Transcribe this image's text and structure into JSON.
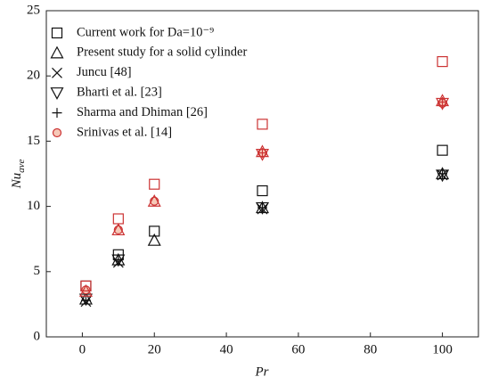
{
  "chart_data": {
    "type": "scatter",
    "xlabel": "Pr",
    "ylabel": {
      "main": "Nu",
      "sub": "ave"
    },
    "xlim": [
      -10,
      110
    ],
    "xticks": [
      0,
      20,
      40,
      60,
      80,
      100
    ],
    "ylim": [
      0,
      25
    ],
    "yticks": [
      0,
      5,
      10,
      15,
      20,
      25
    ],
    "series": [
      {
        "name": "Current work for Da=10⁻⁹",
        "marker": "square",
        "color": "#111111",
        "x": [
          1,
          10,
          20,
          50,
          100
        ],
        "values": [
          3.9,
          6.3,
          8.1,
          11.2,
          14.3
        ]
      },
      {
        "name": "Present study for a solid cylinder",
        "marker": "triangle",
        "color": "#111111",
        "x": [
          1,
          10,
          20,
          50,
          100
        ],
        "values": [
          2.9,
          5.9,
          7.4,
          9.9,
          12.5
        ]
      },
      {
        "name": "Juncu [48]",
        "marker": "cross",
        "color": "#111111",
        "x": [
          1,
          10,
          50,
          100
        ],
        "values": [
          2.7,
          5.7,
          9.8,
          12.4
        ]
      },
      {
        "name": "Bharti et al. [23]",
        "marker": "nabla",
        "color": "#111111",
        "x": [
          1,
          10,
          50,
          100
        ],
        "values": [
          2.9,
          5.9,
          9.9,
          12.4
        ]
      },
      {
        "name": "Sharma and Dhiman [26]",
        "marker": "plus",
        "color": "#111111",
        "x": [
          1,
          10,
          50,
          100
        ],
        "values": [
          2.8,
          5.9,
          9.9,
          12.5
        ]
      },
      {
        "name": "Srinivas et al. [14]",
        "marker": "circle",
        "color": "#cc3333",
        "x": [
          1,
          10,
          20,
          50,
          100
        ],
        "values": [
          3.6,
          8.2,
          10.4,
          14.1,
          17.9
        ]
      },
      {
        "marker": "square",
        "color": "#cc3333",
        "x": [
          1,
          10,
          20,
          50,
          100
        ],
        "values": [
          3.9,
          9.05,
          11.7,
          16.3,
          21.1
        ]
      },
      {
        "marker": "triangle",
        "color": "#cc3333",
        "x": [
          1,
          10,
          20,
          50,
          100
        ],
        "values": [
          3.5,
          8.2,
          10.4,
          14.2,
          18.1
        ]
      },
      {
        "marker": "nabla",
        "color": "#cc3333",
        "x": [
          50,
          100
        ],
        "values": [
          14.0,
          17.9
        ]
      },
      {
        "marker": "plus",
        "color": "#cc3333",
        "x": [
          50,
          100
        ],
        "values": [
          14.1,
          18.0
        ]
      }
    ]
  }
}
